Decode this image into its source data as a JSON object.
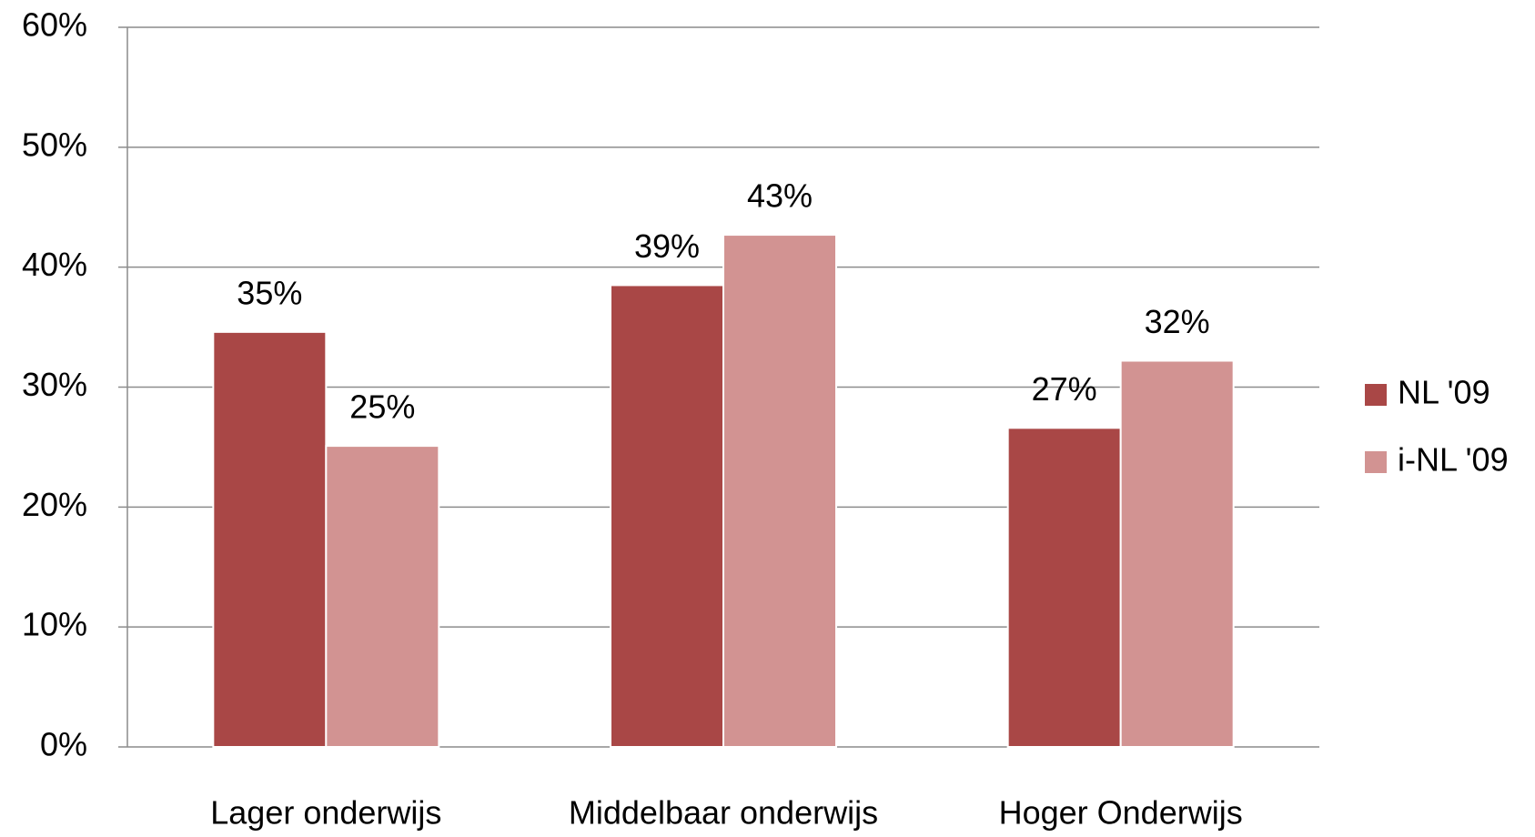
{
  "chart_data": {
    "type": "bar",
    "categories": [
      "Lager onderwijs",
      "Middelbaar onderwijs",
      "Hoger Onderwijs"
    ],
    "series": [
      {
        "name": "NL '09",
        "color": "#a94746",
        "values": [
          34.6,
          38.5,
          26.6
        ],
        "value_labels": [
          "35%",
          "39%",
          "27%"
        ]
      },
      {
        "name": "i-NL '09",
        "color": "#d29392",
        "values": [
          25.1,
          42.7,
          32.2
        ],
        "value_labels": [
          "25%",
          "43%",
          "32%"
        ]
      }
    ],
    "ylim": [
      0,
      60
    ],
    "yticks": [
      {
        "value": 0,
        "label": "0%"
      },
      {
        "value": 10,
        "label": "10%"
      },
      {
        "value": 20,
        "label": "20%"
      },
      {
        "value": 30,
        "label": "30%"
      },
      {
        "value": 40,
        "label": "40%"
      },
      {
        "value": 50,
        "label": "50%"
      },
      {
        "value": 60,
        "label": "60%"
      }
    ],
    "grid": true,
    "legend": "right"
  }
}
